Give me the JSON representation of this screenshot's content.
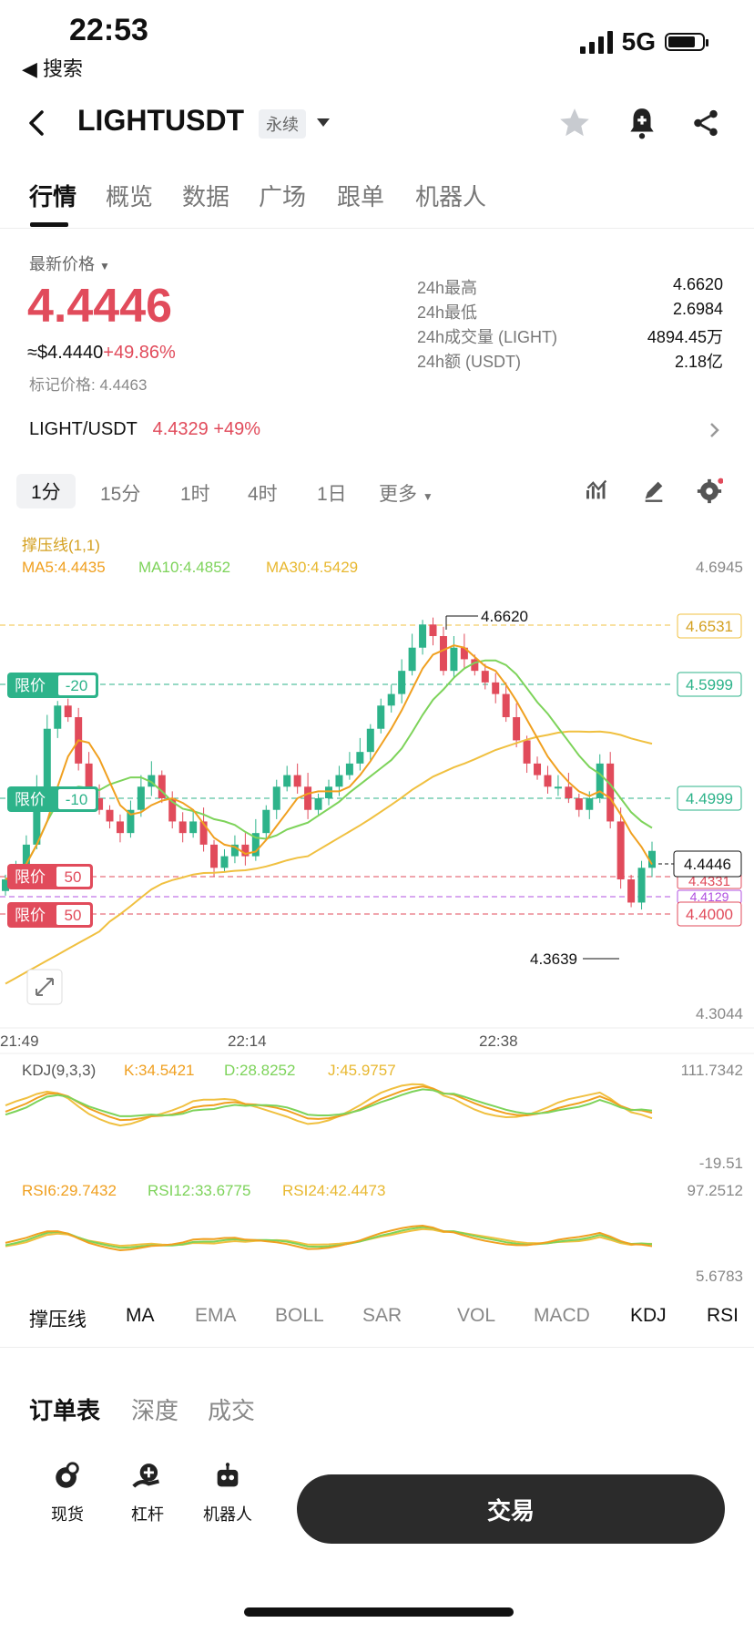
{
  "status": {
    "time": "22:53",
    "back_app": "◀ 搜索",
    "network": "5G"
  },
  "header": {
    "title": "LIGHTUSDT",
    "badge": "永续"
  },
  "tabs": [
    "行情",
    "概览",
    "数据",
    "广场",
    "跟单",
    "机器人"
  ],
  "price": {
    "label": "最新价格",
    "last": "4.4446",
    "usd": "≈$4.4440",
    "change": "+49.86%",
    "mark": "标记价格: 4.4463"
  },
  "stats": [
    {
      "k": "24h最高",
      "v": "4.6620"
    },
    {
      "k": "24h最低",
      "v": "2.6984"
    },
    {
      "k": "24h成交量 (LIGHT)",
      "v": "4894.45万"
    },
    {
      "k": "24h额 (USDT)",
      "v": "2.18亿"
    }
  ],
  "spot": {
    "pair": "LIGHT/USDT",
    "price": "4.4329",
    "change": "+49%"
  },
  "timeframes": [
    "1分",
    "15分",
    "1时",
    "4时",
    "1日",
    "更多"
  ],
  "chart": {
    "indicator_name": "撑压线(1,1)",
    "ma5": "MA5:4.4435",
    "ma10": "MA10:4.4852",
    "ma30": "MA30:4.5429",
    "y_top": "4.6945",
    "y_bottom": "4.3044",
    "high_label": "4.6620",
    "low_label": "4.3639",
    "price_tags": [
      "4.6531",
      "4.5999",
      "4.4999",
      "4.4446",
      "4.4331",
      "4.4129",
      "4.4000"
    ],
    "limit_label": "限价",
    "limit_orders": [
      "-20",
      "-10",
      "50",
      "50"
    ],
    "x_labels": [
      "21:49",
      "22:14",
      "22:38"
    ],
    "kdj_label": "KDJ(9,3,3)",
    "kdj_k": "K:34.5421",
    "kdj_d": "D:28.8252",
    "kdj_j": "J:45.9757",
    "kdj_max": "111.7342",
    "kdj_min": "-19.51",
    "rsi6": "RSI6:29.7432",
    "rsi12": "RSI12:33.6775",
    "rsi24": "RSI24:42.4473",
    "rsi_max": "97.2512",
    "rsi_min": "5.6783",
    "colors": {
      "up": "#2db38a",
      "down": "#e14b5b",
      "ma5": "#f0a020",
      "ma10": "#7dd35a",
      "ma30": "#f0c040"
    }
  },
  "indicators": [
    "撑压线",
    "MA",
    "EMA",
    "BOLL",
    "SAR",
    "VOL",
    "MACD",
    "KDJ",
    "RSI"
  ],
  "orderbook_tabs": [
    "订单表",
    "深度",
    "成交"
  ],
  "bottom": {
    "spot": "现货",
    "margin": "杠杆",
    "bot": "机器人",
    "trade": "交易"
  }
}
